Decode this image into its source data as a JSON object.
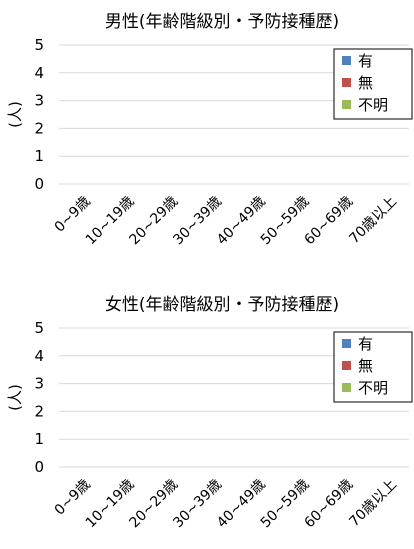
{
  "chart_data": [
    {
      "type": "bar",
      "title": "男性(年齢階級別・予防接種歴)",
      "ylabel": "(人)",
      "xlabel": "",
      "categories": [
        "0~9歳",
        "10~19歳",
        "20~29歳",
        "30~39歳",
        "40~49歳",
        "50~59歳",
        "60~69歳",
        "70歳以上"
      ],
      "series": [
        {
          "name": "有",
          "color": "#4f81bd",
          "values": [
            0,
            0,
            0,
            0,
            0,
            0,
            0,
            0
          ]
        },
        {
          "name": "無",
          "color": "#c0504d",
          "values": [
            0,
            0,
            0,
            0,
            0,
            0,
            0,
            0
          ]
        },
        {
          "name": "不明",
          "color": "#9bbb59",
          "values": [
            0,
            0,
            0,
            0,
            0,
            0,
            0,
            0
          ]
        }
      ],
      "ylim": [
        0,
        5
      ],
      "yticks": [
        "0",
        "1",
        "2",
        "3",
        "4",
        "5"
      ],
      "grid": true,
      "legend": "right"
    },
    {
      "type": "bar",
      "title": "女性(年齢階級別・予防接種歴)",
      "ylabel": "(人)",
      "xlabel": "",
      "categories": [
        "0~9歳",
        "10~19歳",
        "20~29歳",
        "30~39歳",
        "40~49歳",
        "50~59歳",
        "60~69歳",
        "70歳以上"
      ],
      "series": [
        {
          "name": "有",
          "color": "#4f81bd",
          "values": [
            0,
            0,
            0,
            0,
            0,
            0,
            0,
            0
          ]
        },
        {
          "name": "無",
          "color": "#c0504d",
          "values": [
            0,
            0,
            0,
            0,
            0,
            0,
            0,
            0
          ]
        },
        {
          "name": "不明",
          "color": "#9bbb59",
          "values": [
            0,
            0,
            0,
            0,
            0,
            0,
            0,
            0
          ]
        }
      ],
      "ylim": [
        0,
        5
      ],
      "yticks": [
        "0",
        "1",
        "2",
        "3",
        "4",
        "5"
      ],
      "grid": true,
      "legend": "right"
    }
  ]
}
